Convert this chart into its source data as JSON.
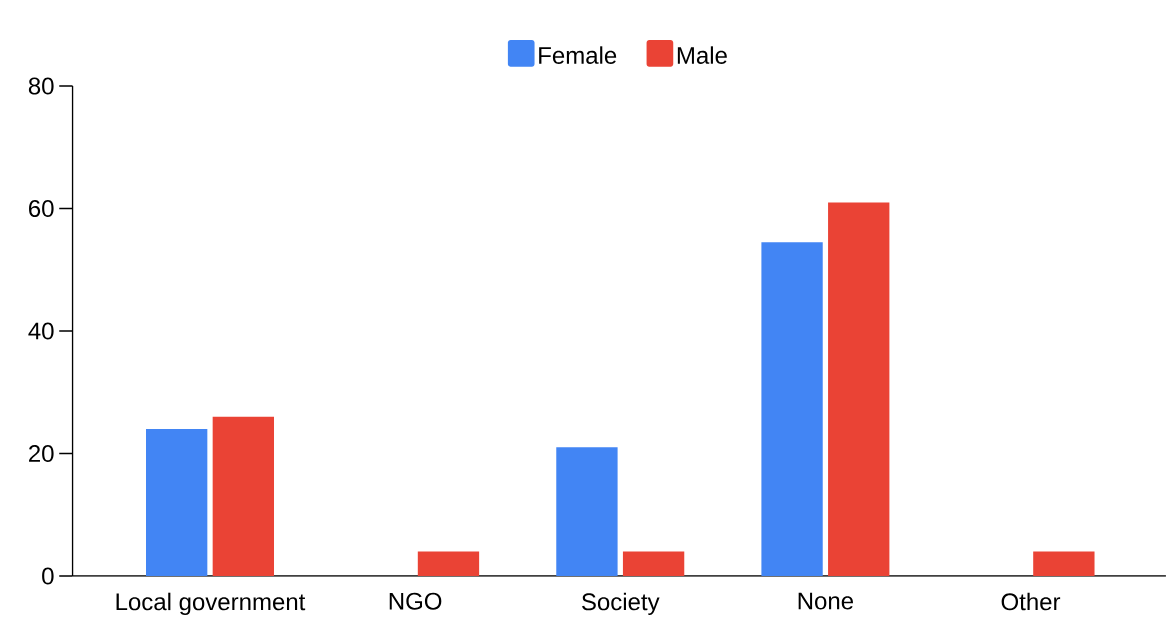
{
  "chart_data": {
    "type": "bar",
    "categories": [
      "Local government",
      "NGO",
      "Society",
      "None",
      "Other"
    ],
    "series": [
      {
        "name": "Female",
        "color": "#4285f4",
        "values": [
          24,
          0,
          21,
          54.5,
          0
        ]
      },
      {
        "name": "Male",
        "color": "#ea4335",
        "values": [
          26,
          4,
          4,
          61,
          4
        ]
      }
    ],
    "ylim": [
      0,
      80
    ],
    "yticks": [
      0,
      20,
      40,
      60,
      80
    ],
    "grid": false,
    "legend": "top"
  }
}
